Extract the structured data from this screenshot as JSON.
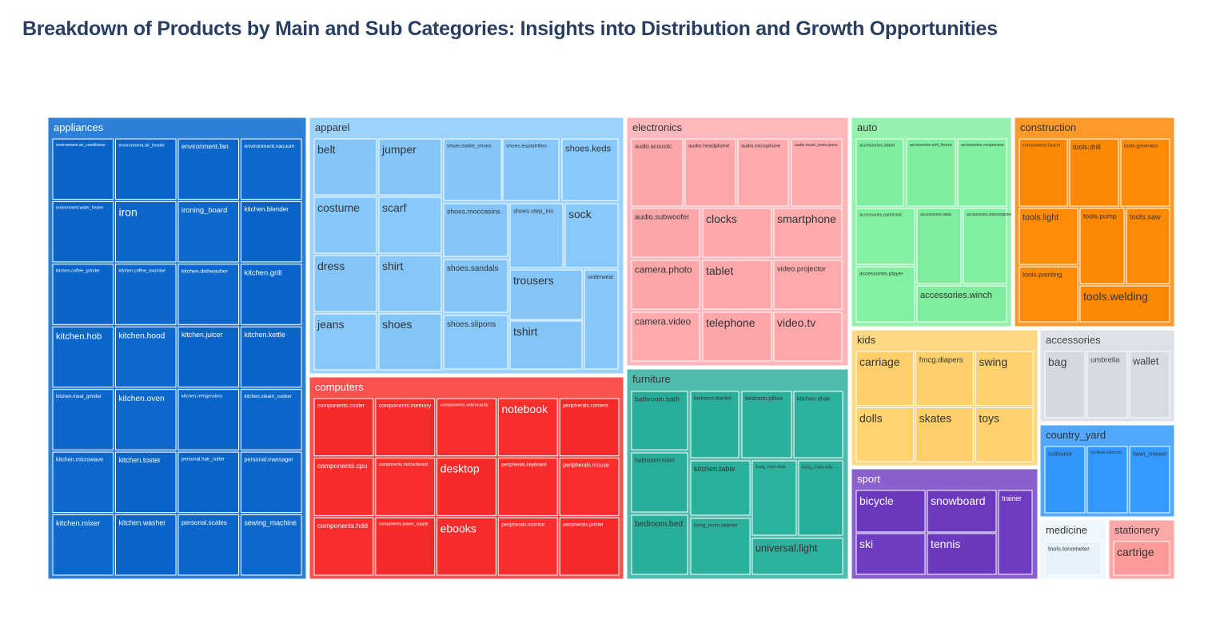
{
  "chart_data": {
    "type": "treemap",
    "title": "Breakdown of Products by Main and Sub Categories: Insights into Distribution and Growth Opportunities",
    "categories": [
      {
        "name": "appliances",
        "color": "#0a66c8",
        "header_color": "#2e7fd6",
        "text_color": "#ffffff",
        "cols": 4,
        "items": [
          "environment.air_conditioner",
          "environment.air_heater",
          "environment.fan",
          "environment.vacuum",
          "environment.water_heater",
          "iron",
          "ironing_board",
          "kitchen.blender",
          "kitchen.coffee_grinder",
          "kitchen.coffee_machine",
          "kitchen.dishwasher",
          "kitchen.grill",
          "kitchen.hob",
          "kitchen.hood",
          "kitchen.juicer",
          "kitchen.kettle",
          "kitchen.meat_grinder",
          "kitchen.oven",
          "kitchen.refrigerators",
          "kitchen.steam_cooker",
          "kitchen.microwave",
          "kitchen.toster",
          "personal.hair_cutter",
          "personal.massager",
          "kitchen.mixer",
          "kitchen.washer",
          "personal.scales",
          "sewing_machine"
        ]
      },
      {
        "name": "apparel",
        "color": "#85c7fb",
        "header_color": "#9dd2fc",
        "text_color": "#333333",
        "cols": 0,
        "items": [
          "belt",
          "jumper",
          "costume",
          "scarf",
          "dress",
          "shirt",
          "jeans",
          "shoes",
          "shoes.ballet_shoes",
          "shoes.espadrilles",
          "shoes.keds",
          "shoes.moccasins",
          "shoes.step_ins",
          "sock",
          "shoes.sandals",
          "trousers",
          "underwear",
          "shoes.slipons",
          "tshirt"
        ]
      },
      {
        "name": "computers",
        "color": "#fa2b2b",
        "header_color": "#fb5050",
        "text_color": "#ffffff",
        "cols": 5,
        "items": [
          "components.cooler",
          "components.memory",
          "components.videocards",
          "notebook",
          "peripherals.camera",
          "components.cpu",
          "components.motherboard",
          "desktop",
          "peripherals.keyboard",
          "peripherals.mouse",
          "components.hdd",
          "components.power_supply",
          "ebooks",
          "peripherals.monitor",
          "peripherals.printer"
        ]
      },
      {
        "name": "electronics",
        "color": "#fda8ab",
        "header_color": "#feb8bb",
        "text_color": "#333333",
        "cols": 0,
        "items": [
          "audio.acoustic",
          "audio.headphone",
          "audio.microphone",
          "audio.music_tools.piano",
          "audio.subwoofer",
          "clocks",
          "smartphone",
          "camera.photo",
          "tablet",
          "video.projector",
          "camera.video",
          "telephone",
          "video.tv"
        ]
      },
      {
        "name": "furniture",
        "color": "#2aaf9b",
        "header_color": "#4fbdad",
        "text_color": "#333333",
        "cols": 0,
        "items": [
          "bathroom.bath",
          "bedroom.blanket",
          "bedroom.pillow",
          "kitchen.chair",
          "bathroom.toilet",
          "kitchen.table",
          "living_room.chair",
          "living_room.sofa",
          "bedroom.bed",
          "living_room.cabinet",
          "universal.light"
        ]
      },
      {
        "name": "auto",
        "color": "#80ef9f",
        "header_color": "#94f2ae",
        "text_color": "#333333",
        "cols": 0,
        "items": [
          "accessories.alarm",
          "accessories.anti_freeze",
          "accessories.compressor",
          "accessories.parktronic",
          "accessories.radar",
          "accessories.videoregister",
          "accessories.player",
          "accessories.winch"
        ]
      },
      {
        "name": "construction",
        "color": "#fd8905",
        "header_color": "#fd9a2b",
        "text_color": "#333333",
        "cols": 0,
        "items": [
          "components.faucet",
          "tools.drill",
          "tools.generator",
          "tools.light",
          "tools.pump",
          "tools.saw",
          "tools.painting",
          "tools.welding"
        ]
      },
      {
        "name": "kids",
        "color": "#fed16c",
        "header_color": "#fed985",
        "text_color": "#333333",
        "cols": 3,
        "items": [
          "carriage",
          "fmcg.diapers",
          "swing",
          "dolls",
          "skates",
          "toys"
        ]
      },
      {
        "name": "accessories",
        "color": "#d6dae3",
        "header_color": "#dee1e8",
        "text_color": "#444444",
        "cols": 3,
        "items": [
          "bag",
          "umbrella",
          "wallet"
        ]
      },
      {
        "name": "country_yard",
        "color": "#3399fe",
        "header_color": "#52a8fe",
        "text_color": "#333333",
        "cols": 3,
        "items": [
          "cultivator",
          "furniture.hammok",
          "lawn_mower"
        ]
      },
      {
        "name": "sport",
        "color": "#6c3bbf",
        "header_color": "#8a61cc",
        "text_color": "#ffffff",
        "cols": 0,
        "items": [
          "bicycle",
          "snowboard",
          "trainer",
          "ski",
          "tennis"
        ]
      },
      {
        "name": "medicine",
        "color": "#e9f4fe",
        "header_color": "#eef6fe",
        "text_color": "#333333",
        "cols": 1,
        "items": [
          "tools.tonometer"
        ]
      },
      {
        "name": "stationery",
        "color": "#fe9b9b",
        "header_color": "#fea9a9",
        "text_color": "#333333",
        "cols": 1,
        "items": [
          "cartrige"
        ]
      }
    ]
  }
}
